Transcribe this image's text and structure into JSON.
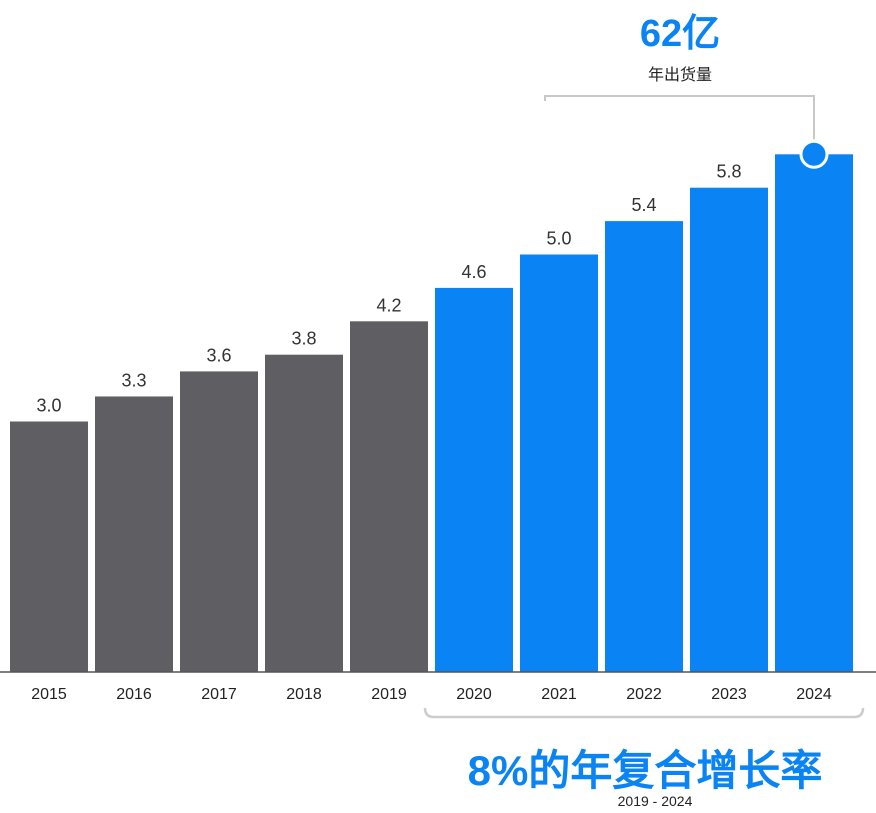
{
  "chart_data": {
    "type": "bar",
    "categories": [
      "2015",
      "2016",
      "2017",
      "2018",
      "2019",
      "2020",
      "2021",
      "2022",
      "2023",
      "2024"
    ],
    "values": [
      3.0,
      3.3,
      3.6,
      3.8,
      4.2,
      4.6,
      5.0,
      5.4,
      5.8,
      6.2
    ],
    "data_labels": [
      "3.0",
      "3.3",
      "3.6",
      "3.8",
      "4.2",
      "4.6",
      "5.0",
      "5.4",
      "5.8",
      ""
    ],
    "bar_colors": [
      "#5f5e62",
      "#5f5e62",
      "#5f5e62",
      "#5f5e62",
      "#5f5e62",
      "#0a84f5",
      "#0a84f5",
      "#0a84f5",
      "#0a84f5",
      "#0a84f5"
    ],
    "ylim": [
      0,
      8
    ],
    "grid": false
  },
  "callout": {
    "value": "62亿",
    "label": "年出货量"
  },
  "cagr": {
    "text": "8%的年复合增长率",
    "period": "2019 - 2024"
  },
  "colors": {
    "accent": "#0a84f5",
    "axis": "#555555",
    "connector": "#c8c8c8",
    "bracket": "#cccccc"
  }
}
